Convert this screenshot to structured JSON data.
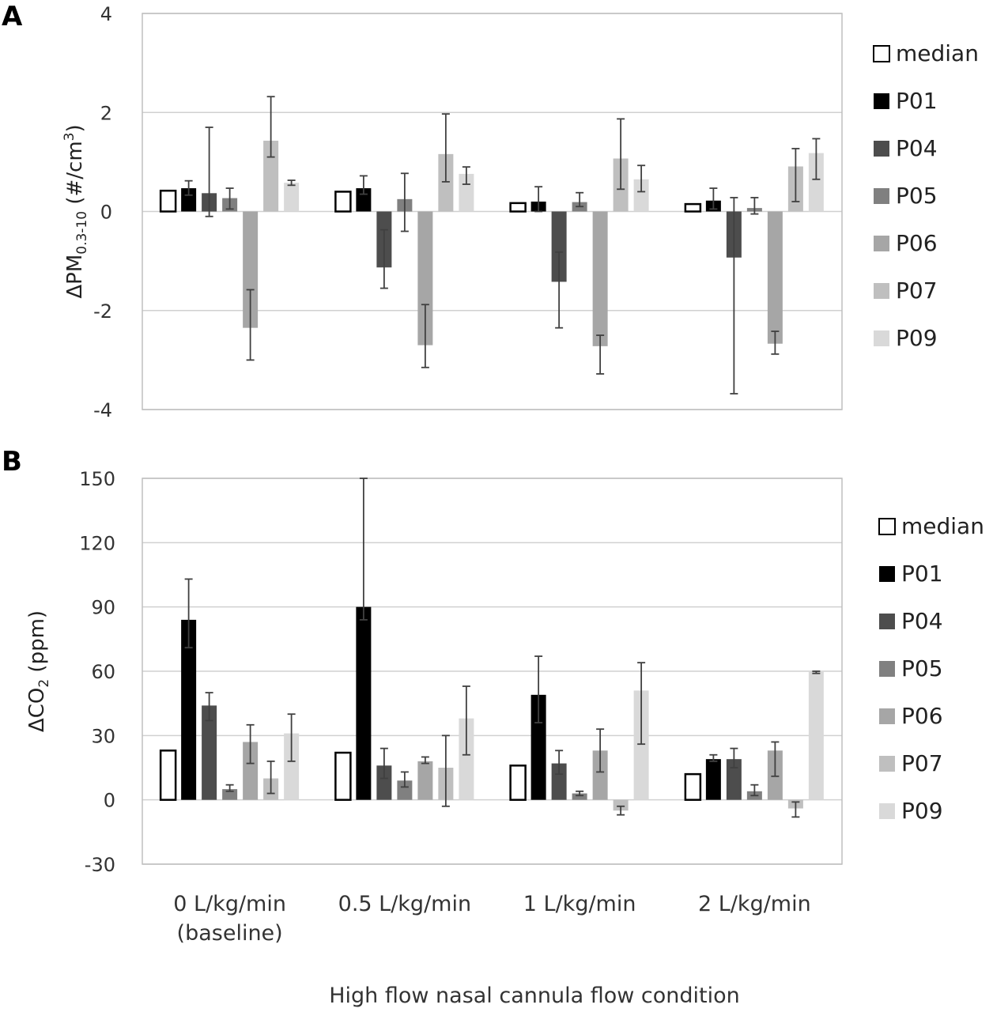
{
  "panel_labels": [
    "A",
    "B"
  ],
  "x_axis_title": "High flow nasal cannula flow condition",
  "colors": {
    "median": "#ffffff",
    "P01": "#000000",
    "P04": "#4d4d4d",
    "P05": "#808080",
    "P06": "#a6a6a6",
    "P07": "#bfbfbf",
    "P09": "#d9d9d9",
    "grid": "#d0d0d0",
    "axis_border": "#bfbfbf",
    "errorbar": "#404040"
  },
  "chart_data": [
    {
      "panel": "A",
      "type": "bar",
      "ylabel": "ΔPM",
      "ylabel_sub": "0.3-10",
      "ylabel_unit": " (#/cm",
      "ylabel_sup": "3",
      "ylabel_end": ")",
      "ylim": [
        -4,
        4
      ],
      "yticks": [
        4,
        2,
        0,
        -2,
        -4
      ],
      "grid": true,
      "legend": "right",
      "categories": [
        "0 L/kg/min (baseline)",
        "0.5 L/kg/min",
        "1 L/kg/min",
        "2 L/kg/min"
      ],
      "series": [
        {
          "name": "median",
          "values": [
            0.42,
            0.4,
            0.17,
            0.15
          ],
          "err_low": [
            null,
            null,
            null,
            null
          ],
          "err_high": [
            null,
            null,
            null,
            null
          ]
        },
        {
          "name": "P01",
          "values": [
            0.47,
            0.47,
            0.2,
            0.22
          ],
          "err_low": [
            0.33,
            0.35,
            0.0,
            0.05
          ],
          "err_high": [
            0.62,
            0.72,
            0.5,
            0.47
          ]
        },
        {
          "name": "P04",
          "values": [
            0.37,
            -1.13,
            -1.42,
            -0.93
          ],
          "err_low": [
            -0.1,
            -1.55,
            -2.35,
            -3.68
          ],
          "err_high": [
            1.7,
            -0.37,
            -0.82,
            0.28
          ]
        },
        {
          "name": "P05",
          "values": [
            0.27,
            0.25,
            0.19,
            0.07
          ],
          "err_low": [
            0.05,
            -0.4,
            0.1,
            -0.05
          ],
          "err_high": [
            0.47,
            0.77,
            0.38,
            0.28
          ]
        },
        {
          "name": "P06",
          "values": [
            -2.35,
            -2.7,
            -2.72,
            -2.67
          ],
          "err_low": [
            -3.0,
            -3.15,
            -3.28,
            -2.88
          ],
          "err_high": [
            -1.58,
            -1.88,
            -2.5,
            -2.42
          ]
        },
        {
          "name": "P07",
          "values": [
            1.43,
            1.16,
            1.07,
            0.91
          ],
          "err_low": [
            1.1,
            0.6,
            0.45,
            0.2
          ],
          "err_high": [
            2.32,
            1.97,
            1.87,
            1.27
          ]
        },
        {
          "name": "P09",
          "values": [
            0.58,
            0.76,
            0.65,
            1.18
          ],
          "err_low": [
            0.53,
            0.55,
            0.4,
            0.65
          ],
          "err_high": [
            0.63,
            0.9,
            0.93,
            1.47
          ]
        }
      ]
    },
    {
      "panel": "B",
      "type": "bar",
      "ylabel": "ΔCO",
      "ylabel_sub": "2",
      "ylabel_unit": " (ppm)",
      "ylim": [
        -30,
        150
      ],
      "yticks": [
        150,
        120,
        90,
        60,
        30,
        0,
        -30
      ],
      "grid": true,
      "legend": "right",
      "categories": [
        "0 L/kg/min (baseline)",
        "0.5 L/kg/min",
        "1 L/kg/min",
        "2 L/kg/min"
      ],
      "series": [
        {
          "name": "median",
          "values": [
            23,
            22,
            16,
            12
          ],
          "err_low": [
            null,
            null,
            null,
            null
          ],
          "err_high": [
            null,
            null,
            null,
            null
          ]
        },
        {
          "name": "P01",
          "values": [
            84,
            90,
            49,
            19
          ],
          "err_low": [
            71,
            84,
            36,
            18
          ],
          "err_high": [
            103,
            150,
            67,
            21
          ]
        },
        {
          "name": "P04",
          "values": [
            44,
            16,
            17,
            19
          ],
          "err_low": [
            37,
            10,
            12,
            15
          ],
          "err_high": [
            50,
            24,
            23,
            24
          ]
        },
        {
          "name": "P05",
          "values": [
            5,
            9,
            3,
            4
          ],
          "err_low": [
            4,
            6,
            2,
            2
          ],
          "err_high": [
            7,
            13,
            4,
            7
          ]
        },
        {
          "name": "P06",
          "values": [
            27,
            18,
            23,
            23
          ],
          "err_low": [
            17,
            17,
            13,
            11
          ],
          "err_high": [
            35,
            20,
            33,
            27
          ]
        },
        {
          "name": "P07",
          "values": [
            10,
            15,
            -5,
            -4
          ],
          "err_low": [
            3,
            -3,
            -7,
            -8
          ],
          "err_high": [
            18,
            30,
            -3,
            -1
          ]
        },
        {
          "name": "P09",
          "values": [
            31,
            38,
            51,
            60
          ],
          "err_low": [
            18,
            21,
            26,
            59
          ],
          "err_high": [
            40,
            53,
            64,
            60
          ]
        }
      ]
    }
  ]
}
